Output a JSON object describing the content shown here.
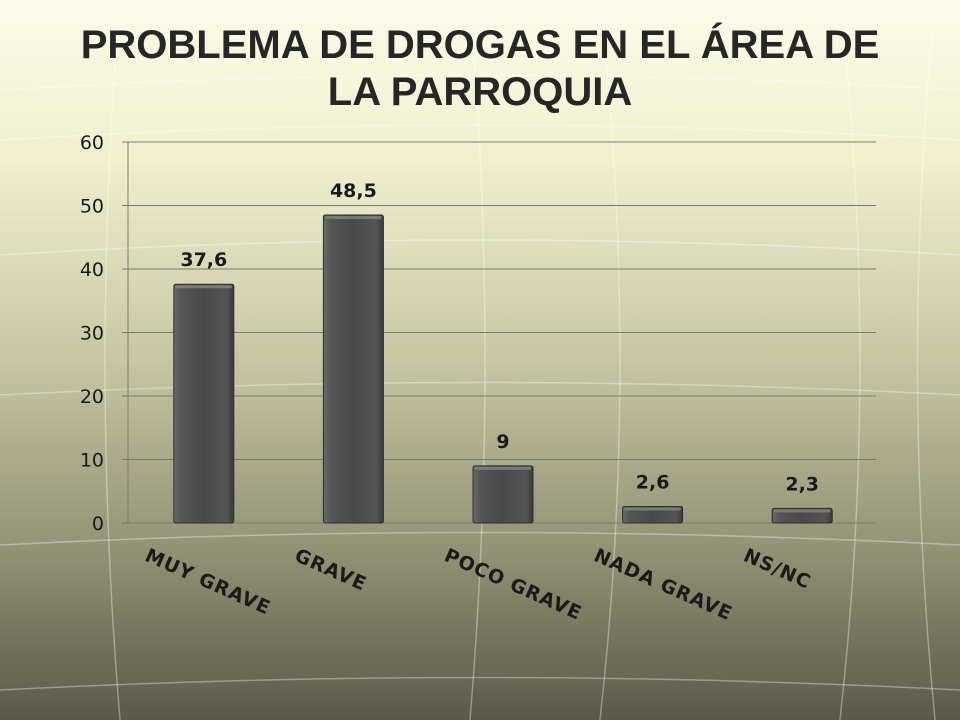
{
  "page": {
    "title": "PROBLEMA DE DROGAS EN EL ÁREA DE LA PARROQUIA"
  },
  "colors": {
    "bar": "#4f4f4f",
    "bar_highlight": "#7a7a7a",
    "gridline": "#7a7a72",
    "text": "#1a1a1a"
  },
  "chart_data": {
    "type": "bar",
    "title": "PROBLEMA DE DROGAS EN EL ÁREA DE LA PARROQUIA",
    "xlabel": "",
    "ylabel": "",
    "categories": [
      "MUY GRAVE",
      "GRAVE",
      "POCO GRAVE",
      "NADA GRAVE",
      "NS/NC"
    ],
    "values": [
      37.6,
      48.5,
      9,
      2.6,
      2.3
    ],
    "data_labels": [
      "37,6",
      "48,5",
      "9",
      "2,6",
      "2,3"
    ],
    "ylim": [
      0,
      60
    ],
    "yticks": [
      0,
      10,
      20,
      30,
      40,
      50,
      60
    ],
    "grid": true,
    "legend": "none"
  }
}
